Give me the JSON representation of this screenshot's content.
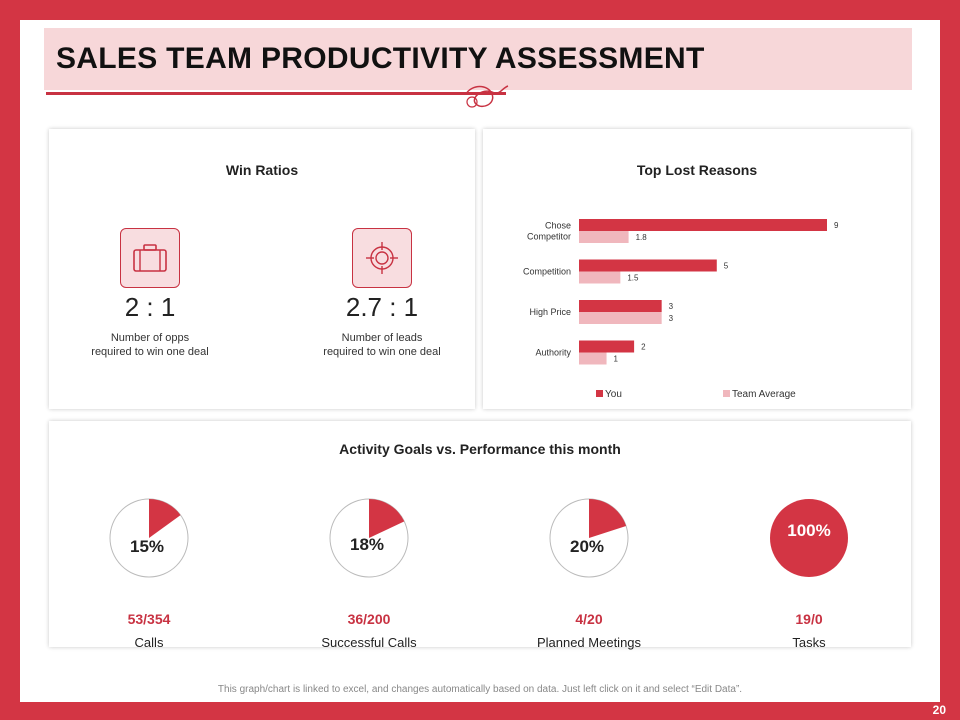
{
  "title": "SALES TEAM PRODUCTIVITY ASSESSMENT",
  "win_ratios": {
    "title": "Win Ratios",
    "items": [
      {
        "icon": "briefcase-icon",
        "ratio": "2 : 1",
        "desc_line1": "Number of opps",
        "desc_line2": "required to win one deal"
      },
      {
        "icon": "target-icon",
        "ratio": "2.7 : 1",
        "desc_line1": "Number of leads",
        "desc_line2": "required to win one deal"
      }
    ]
  },
  "chart_data": [
    {
      "type": "bar",
      "orientation": "horizontal",
      "title": "Top Lost Reasons",
      "categories": [
        "Chose Competitor",
        "Competition",
        "High Price",
        "Authority"
      ],
      "category_lines": [
        [
          "Chose",
          "Competitor"
        ],
        [
          "Competition"
        ],
        [
          "High Price"
        ],
        [
          "Authority"
        ]
      ],
      "series": [
        {
          "name": "You",
          "values": [
            9,
            5,
            3,
            2
          ],
          "color": "#d33544"
        },
        {
          "name": "Team Average",
          "values": [
            1.8,
            1.5,
            3,
            1
          ],
          "color": "#f0b7bd"
        }
      ],
      "value_labels": [
        [
          "9",
          "5",
          "3",
          "2"
        ],
        [
          "1.8",
          "1.5",
          "3",
          "1"
        ]
      ],
      "xlim": [
        0,
        9
      ],
      "legend": "bottom"
    },
    {
      "type": "pie",
      "title": "Activity Goals vs. Performance this month",
      "items": [
        {
          "name": "Calls",
          "percent": 15,
          "percent_label": "15%",
          "ratio": "53/354"
        },
        {
          "name": "Successful Calls",
          "percent": 18,
          "percent_label": "18%",
          "ratio": "36/200"
        },
        {
          "name": "Planned Meetings",
          "percent": 20,
          "percent_label": "20%",
          "ratio": "4/20"
        },
        {
          "name": "Tasks",
          "percent": 100,
          "percent_label": "100%",
          "ratio": "19/0"
        }
      ]
    }
  ],
  "colors": {
    "accent": "#d33544",
    "light_accent": "#f0b7bd",
    "title_bg": "#f7d7d9"
  },
  "footer": "This graph/chart is linked to excel, and changes automatically based on data. Just left click on it and select “Edit Data”.",
  "page_number": "20"
}
